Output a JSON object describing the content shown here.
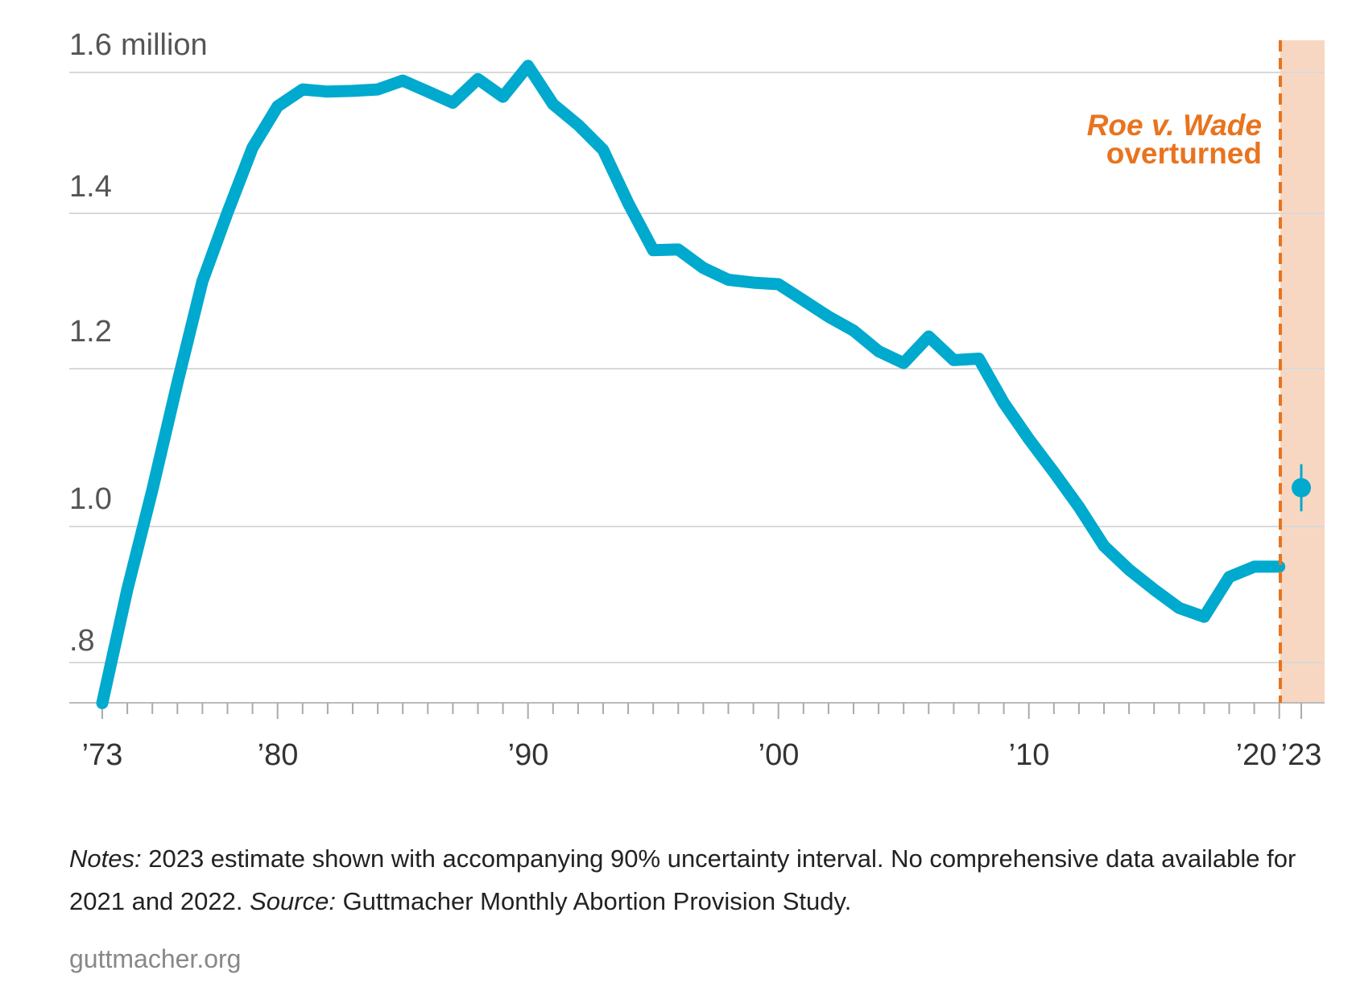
{
  "chart_data": {
    "type": "line",
    "x": [
      1973,
      1974,
      1975,
      1976,
      1977,
      1978,
      1979,
      1980,
      1981,
      1982,
      1983,
      1984,
      1985,
      1986,
      1987,
      1988,
      1989,
      1990,
      1991,
      1992,
      1993,
      1994,
      1995,
      1996,
      1997,
      1998,
      1999,
      2000,
      2001,
      2002,
      2003,
      2004,
      2005,
      2006,
      2007,
      2008,
      2009,
      2010,
      2011,
      2012,
      2013,
      2014,
      2015,
      2016,
      2017,
      2018,
      2019,
      2020
    ],
    "series": [
      {
        "values": [
          0.745,
          0.899,
          1.034,
          1.179,
          1.317,
          1.41,
          1.498,
          1.554,
          1.577,
          1.574,
          1.575,
          1.577,
          1.589,
          1.574,
          1.559,
          1.591,
          1.567,
          1.609,
          1.557,
          1.529,
          1.495,
          1.423,
          1.359,
          1.36,
          1.335,
          1.319,
          1.315,
          1.313,
          1.291,
          1.269,
          1.25,
          1.222,
          1.206,
          1.242,
          1.21,
          1.212,
          1.152,
          1.103,
          1.058,
          1.011,
          0.958,
          0.926,
          0.899,
          0.874,
          0.862,
          0.916,
          0.93,
          0.93
        ],
        "color": "#00a9ce"
      }
    ],
    "estimate_2023": {
      "x": 2023,
      "value": 1.037,
      "interval": [
        1.005,
        1.069
      ],
      "color": "#00a9ce"
    },
    "ylim": [
      0.75,
      1.65
    ],
    "yticks": [
      {
        "value": 1.6,
        "label": "1.6",
        "unit": "million"
      },
      {
        "value": 1.4,
        "label": "1.4"
      },
      {
        "value": 1.2,
        "label": "1.2"
      },
      {
        "value": 1.0,
        "label": "1.0"
      },
      {
        "value": 0.8,
        "label": ".8"
      }
    ],
    "xticks": [
      {
        "value": 1973,
        "label": "’73"
      },
      {
        "value": 1980,
        "label": "’80"
      },
      {
        "value": 1990,
        "label": "’90"
      },
      {
        "value": 2000,
        "label": "’00"
      },
      {
        "value": 2010,
        "label": "’10"
      },
      {
        "value": 2020,
        "label": "’20"
      },
      {
        "value": 2023,
        "label": "’23"
      }
    ],
    "grid": true,
    "annotation": {
      "line1": "Roe v. Wade",
      "line2": "overturned",
      "color": "#e8741f",
      "shade_color": "#f8d7c2"
    }
  },
  "notes": {
    "label1": "Notes:",
    "text1": " 2023 estimate shown with accompanying 90% uncertainty interval. No comprehensive data available for 2021 and 2022. ",
    "label2": "Source:",
    "text2": " Guttmacher Monthly Abortion Provision Study."
  },
  "footer": "guttmacher.org"
}
